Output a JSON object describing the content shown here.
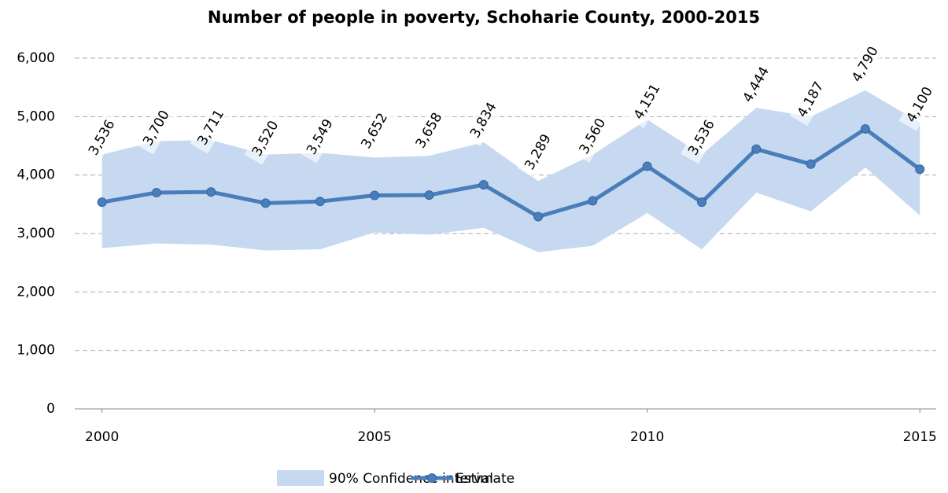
{
  "chart_data": {
    "type": "line",
    "title": "Number of people in poverty, Schoharie County, 2000-2015",
    "x": [
      2000,
      2001,
      2002,
      2003,
      2004,
      2005,
      2006,
      2007,
      2008,
      2009,
      2010,
      2011,
      2012,
      2013,
      2014,
      2015
    ],
    "xlim": [
      1999.5,
      2015.3
    ],
    "xticks": [
      2000,
      2005,
      2010,
      2015
    ],
    "ylim": [
      0,
      6000
    ],
    "yticks": [
      0,
      {
        "value": 1000,
        "label": "1,000"
      },
      {
        "value": 2000,
        "label": "2,000"
      },
      {
        "value": 3000,
        "label": "3,000"
      },
      {
        "value": 4000,
        "label": "4,000"
      },
      {
        "value": 5000,
        "label": "5,000"
      },
      {
        "value": 6000,
        "label": "6,000"
      }
    ],
    "grid": true,
    "legend": "bottom",
    "series": [
      {
        "name": "90% Confidence interval",
        "color": "#c6d9f1",
        "upper": [
          4350,
          4580,
          4600,
          4350,
          4380,
          4300,
          4330,
          4560,
          3900,
          4350,
          4950,
          4350,
          5150,
          5000,
          5450,
          4900
        ],
        "lower": [
          2750,
          2830,
          2810,
          2710,
          2730,
          3020,
          2980,
          3100,
          2680,
          2790,
          3350,
          2730,
          3700,
          3380,
          4130,
          3310
        ]
      },
      {
        "name": "Estimate",
        "color": "#4a7ebb",
        "values": [
          3536,
          3700,
          3711,
          3520,
          3549,
          3652,
          3658,
          3834,
          3289,
          3560,
          4151,
          3536,
          4444,
          4187,
          4790,
          4100
        ],
        "value_labels": [
          "3,536",
          "3,700",
          "3,711",
          "3,520",
          "3,549",
          "3,652",
          "3,658",
          "3,834",
          "3,289",
          "3,560",
          "4,151",
          "3,536",
          "4,444",
          "4,187",
          "4,790",
          "4,100"
        ]
      }
    ]
  }
}
